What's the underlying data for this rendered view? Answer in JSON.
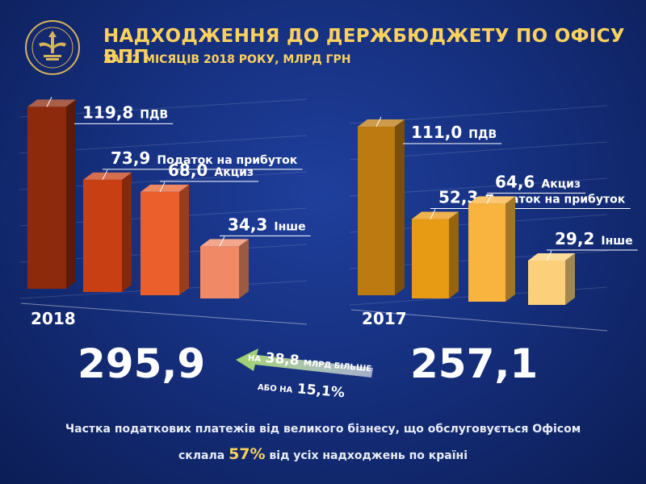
{
  "header": {
    "title": "НАДХОДЖЕННЯ ДО ДЕРЖБЮДЖЕТУ ПО ОФІСУ ВПП",
    "subtitle": "ЗА 12 МІСЯЦІВ 2018 РОКУ, МЛРД ГРН"
  },
  "chart_data": {
    "type": "bar",
    "title": "НАДХОДЖЕННЯ ДО ДЕРЖБЮДЖЕТУ ПО ОФІСУ ВПП",
    "subtitle": "ЗА 12 МІСЯЦІВ 2018 РОКУ, МЛРД ГРН",
    "categories": [
      "ПДВ",
      "Податок на прибуток",
      "Акциз",
      "Інше"
    ],
    "series": [
      {
        "name": "2018",
        "values": [
          119.8,
          73.9,
          68.0,
          34.3
        ],
        "labels": [
          "119,8",
          "73,9",
          "68,0",
          "34,3"
        ],
        "total": "295,9",
        "colors": [
          "#8e2a0c",
          "#c93f14",
          "#ea5f2b",
          "#f08a66"
        ]
      },
      {
        "name": "2017",
        "values": [
          111.0,
          52.3,
          64.6,
          29.2
        ],
        "labels": [
          "111,0",
          "52,3",
          "64,6",
          "29,2"
        ],
        "total": "257,1",
        "colors": [
          "#bc7a10",
          "#e79a14",
          "#f9b440",
          "#fccf7a"
        ]
      }
    ],
    "ylim": [
      0,
      130
    ],
    "grid": true,
    "legend": "none"
  },
  "comparison": {
    "prefix_1": "НА",
    "amount": "38,8",
    "suffix_1": "МЛРД БІЛЬШЕ",
    "prefix_2": "АБО НА",
    "percent": "15,1",
    "percent_sign": "%"
  },
  "footnote": {
    "line1": "Частка податкових платежів від великого бізнесу, що обслуговується Офісом",
    "line2_before": "склала",
    "share": "57%",
    "line2_after": "від усіх надходжень по країні"
  },
  "emblem": {
    "icon": "tax-service-emblem-icon",
    "text_top": "ДЕРЖАВНА ФІСКАЛЬНА СЛУЖБА",
    "text_bottom": "ОФІС ВЕЛИКИХ ПЛАТНИКІВ"
  },
  "colors": {
    "title": "#fbd15e",
    "background": "#16307f",
    "arrow": "#9fd26a"
  }
}
